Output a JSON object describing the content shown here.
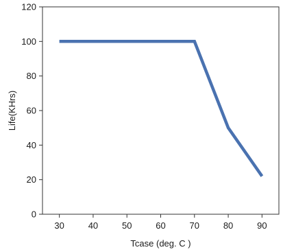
{
  "chart_data": {
    "type": "line",
    "xlabel": "Tcase (deg. C )",
    "ylabel": "Life(KHrs)",
    "xlim": [
      25,
      95
    ],
    "ylim": [
      0,
      120
    ],
    "x_ticks": [
      30,
      40,
      50,
      60,
      70,
      80,
      90
    ],
    "y_ticks": [
      0,
      20,
      40,
      60,
      80,
      100,
      120
    ],
    "grid": false,
    "legend": "none",
    "series": [
      {
        "color": "#4a72b0",
        "x": [
          30,
          70,
          80,
          90
        ],
        "y": [
          100,
          100,
          50,
          22
        ]
      }
    ]
  }
}
